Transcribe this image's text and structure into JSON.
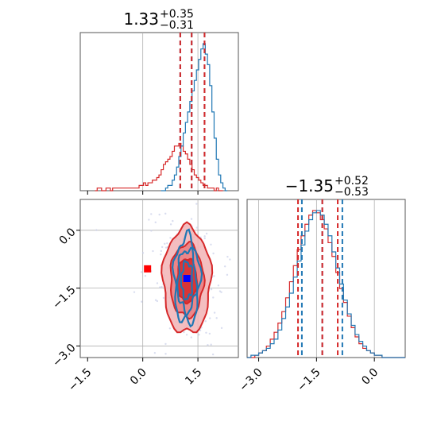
{
  "chart_data": [
    {
      "type": "histogram",
      "panel": "top-left",
      "title": {
        "value": "1.33",
        "upper": "+0.35",
        "lower": "−0.31"
      },
      "xlim": [
        -1.7,
        2.6
      ],
      "grid": true,
      "bin_width": 0.06,
      "series": [
        {
          "color": "#1f77b4",
          "x_start": 0.5,
          "counts": [
            0,
            0,
            1,
            2,
            2,
            4,
            6,
            9,
            13,
            17,
            22,
            26,
            30,
            34,
            38,
            42,
            46,
            50,
            54,
            56,
            52,
            48,
            40,
            30,
            20,
            12,
            6,
            3,
            1,
            0
          ],
          "markers": {
            "median": 1.33,
            "lower": 1.02,
            "upper": 1.68
          }
        },
        {
          "color": "#d62728",
          "x_start": -1.3,
          "counts": [
            0,
            1,
            1,
            0,
            0,
            1,
            1,
            0,
            1,
            1,
            1,
            1,
            1,
            1,
            1,
            1,
            1,
            1,
            1,
            1,
            2,
            2,
            3,
            2,
            3,
            3,
            4,
            4,
            5,
            6,
            8,
            10,
            11,
            12,
            13,
            15,
            17,
            17,
            18,
            17,
            15,
            14,
            12,
            10,
            8,
            6,
            5,
            4,
            3,
            2,
            2,
            1,
            1,
            1,
            0,
            1,
            0,
            0
          ],
          "markers": {
            "median": 1.33,
            "lower": 1.02,
            "upper": 1.68
          }
        }
      ]
    },
    {
      "type": "histogram",
      "panel": "bottom-right",
      "title": {
        "value": "−1.35",
        "upper": "+0.52",
        "lower": "−0.53"
      },
      "xlim": [
        -3.3,
        0.8
      ],
      "xticks": [
        "−3.0",
        "−1.5",
        "0.0"
      ],
      "grid": true,
      "bin_width": 0.1,
      "series": [
        {
          "color": "#1f77b4",
          "x_start": -3.3,
          "counts": [
            0,
            1,
            1,
            2,
            3,
            4,
            6,
            8,
            12,
            17,
            22,
            28,
            35,
            42,
            49,
            55,
            60,
            63,
            64,
            62,
            58,
            53,
            46,
            39,
            32,
            25,
            19,
            14,
            10,
            7,
            5,
            3,
            2,
            1,
            1,
            0,
            0,
            0,
            0,
            0,
            0
          ],
          "markers": {
            "median": -1.35,
            "lower": -1.88,
            "upper": -0.83
          }
        },
        {
          "color": "#d62728",
          "x_start": -3.3,
          "counts": [
            0,
            0,
            1,
            2,
            3,
            5,
            8,
            11,
            15,
            20,
            26,
            33,
            40,
            47,
            53,
            58,
            62,
            64,
            63,
            60,
            56,
            50,
            44,
            37,
            30,
            24,
            18,
            13,
            9,
            6,
            4,
            3,
            2,
            1,
            1,
            0,
            0,
            0,
            0,
            0,
            0
          ],
          "markers": {
            "median": -1.35,
            "lower": -1.98,
            "upper": -0.95
          }
        }
      ]
    },
    {
      "type": "contour",
      "panel": "bottom-left",
      "xlim": [
        -1.7,
        2.6
      ],
      "ylim": [
        -3.3,
        0.8
      ],
      "xticks": [
        "−1.5",
        "0.0",
        "1.5"
      ],
      "yticks": [
        "0.0",
        "−1.5",
        "−3.0"
      ],
      "grid": true,
      "series": [
        {
          "color": "#d62728",
          "center": [
            1.2,
            -1.3
          ],
          "spread": [
            0.45,
            0.95
          ]
        },
        {
          "color": "#1f77b4",
          "center": [
            1.2,
            -1.3
          ],
          "spread": [
            0.25,
            0.8
          ]
        }
      ],
      "points": [
        {
          "x": 0.13,
          "y": -1.0,
          "color": "#ff0000",
          "shape": "square"
        },
        {
          "x": 1.2,
          "y": -1.25,
          "color": "#0000ff",
          "shape": "square"
        }
      ]
    }
  ]
}
